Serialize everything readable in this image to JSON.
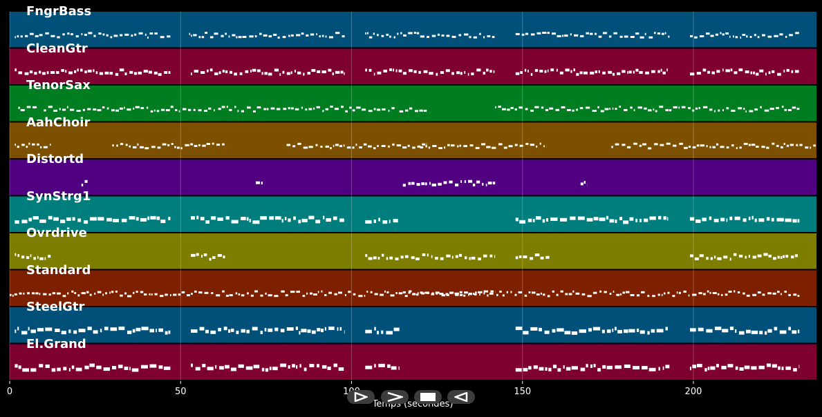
{
  "chart_data": {
    "type": "piano-roll",
    "x_label": "Temps (secondes)",
    "x_range": [
      0,
      236
    ],
    "x_ticks": [
      "0",
      "50",
      "100",
      "150",
      "200"
    ],
    "x_tick_values": [
      0,
      50,
      100,
      150,
      200
    ],
    "tracks": [
      {
        "name": "FngrBass",
        "color": "#00507a",
        "segments": [
          [
            1.5,
            47
          ],
          [
            52.5,
            98
          ],
          [
            104,
            142
          ],
          [
            148,
            193
          ],
          [
            199,
            231
          ]
        ],
        "note_height": 3
      },
      {
        "name": "CleanGtr",
        "color": "#7d0030",
        "segments": [
          [
            1.5,
            47
          ],
          [
            53,
            98
          ],
          [
            104,
            142
          ],
          [
            148,
            193
          ],
          [
            199,
            231
          ]
        ],
        "note_height": 4
      },
      {
        "name": "TenorSax",
        "color": "#007d20",
        "segments": [
          [
            2.5,
            8
          ],
          [
            10,
            60
          ],
          [
            61,
            113
          ],
          [
            114,
            122
          ],
          [
            142,
            231
          ]
        ],
        "note_height": 3
      },
      {
        "name": "AahChoir",
        "color": "#7d5000",
        "segments": [
          [
            1.5,
            12
          ],
          [
            30,
            63
          ],
          [
            81,
            122
          ],
          [
            120,
            157
          ],
          [
            176,
            236
          ]
        ],
        "note_height": 3
      },
      {
        "name": "Distortd",
        "color": "#500080",
        "segments": [
          [
            21,
            23
          ],
          [
            72,
            74
          ],
          [
            115,
            142
          ],
          [
            167,
            169
          ]
        ],
        "note_height": 4
      },
      {
        "name": "SynStrg1",
        "color": "#007d7d",
        "segments": [
          [
            1.5,
            47
          ],
          [
            53,
            98
          ],
          [
            104,
            114
          ],
          [
            148,
            193
          ],
          [
            199,
            231
          ]
        ],
        "note_height": 5
      },
      {
        "name": "Ovrdrive",
        "color": "#7d7d00",
        "segments": [
          [
            1.5,
            12
          ],
          [
            53,
            63
          ],
          [
            104,
            142
          ],
          [
            148,
            158
          ],
          [
            199,
            231
          ]
        ],
        "note_height": 4
      },
      {
        "name": "Standard",
        "color": "#7d2000",
        "segments": [
          [
            0,
            231
          ],
          [
            115,
            142
          ]
        ],
        "note_height": 3
      },
      {
        "name": "SteelGtr",
        "color": "#00507a",
        "segments": [
          [
            1.5,
            47
          ],
          [
            53,
            98
          ],
          [
            104,
            114
          ],
          [
            148,
            193
          ],
          [
            199,
            231
          ]
        ],
        "note_height": 5
      },
      {
        "name": "El.Grand",
        "color": "#7d0030",
        "segments": [
          [
            1.5,
            47
          ],
          [
            53,
            98
          ],
          [
            104,
            114
          ],
          [
            148,
            193
          ],
          [
            199,
            231
          ]
        ],
        "note_height": 5
      }
    ]
  },
  "controls": [
    {
      "name": "play-button",
      "icon": "play-icon"
    },
    {
      "name": "fast-forward-button",
      "icon": "fast-forward-icon"
    },
    {
      "name": "stop-button",
      "icon": "stop-icon"
    },
    {
      "name": "rewind-button",
      "icon": "rewind-icon"
    }
  ]
}
